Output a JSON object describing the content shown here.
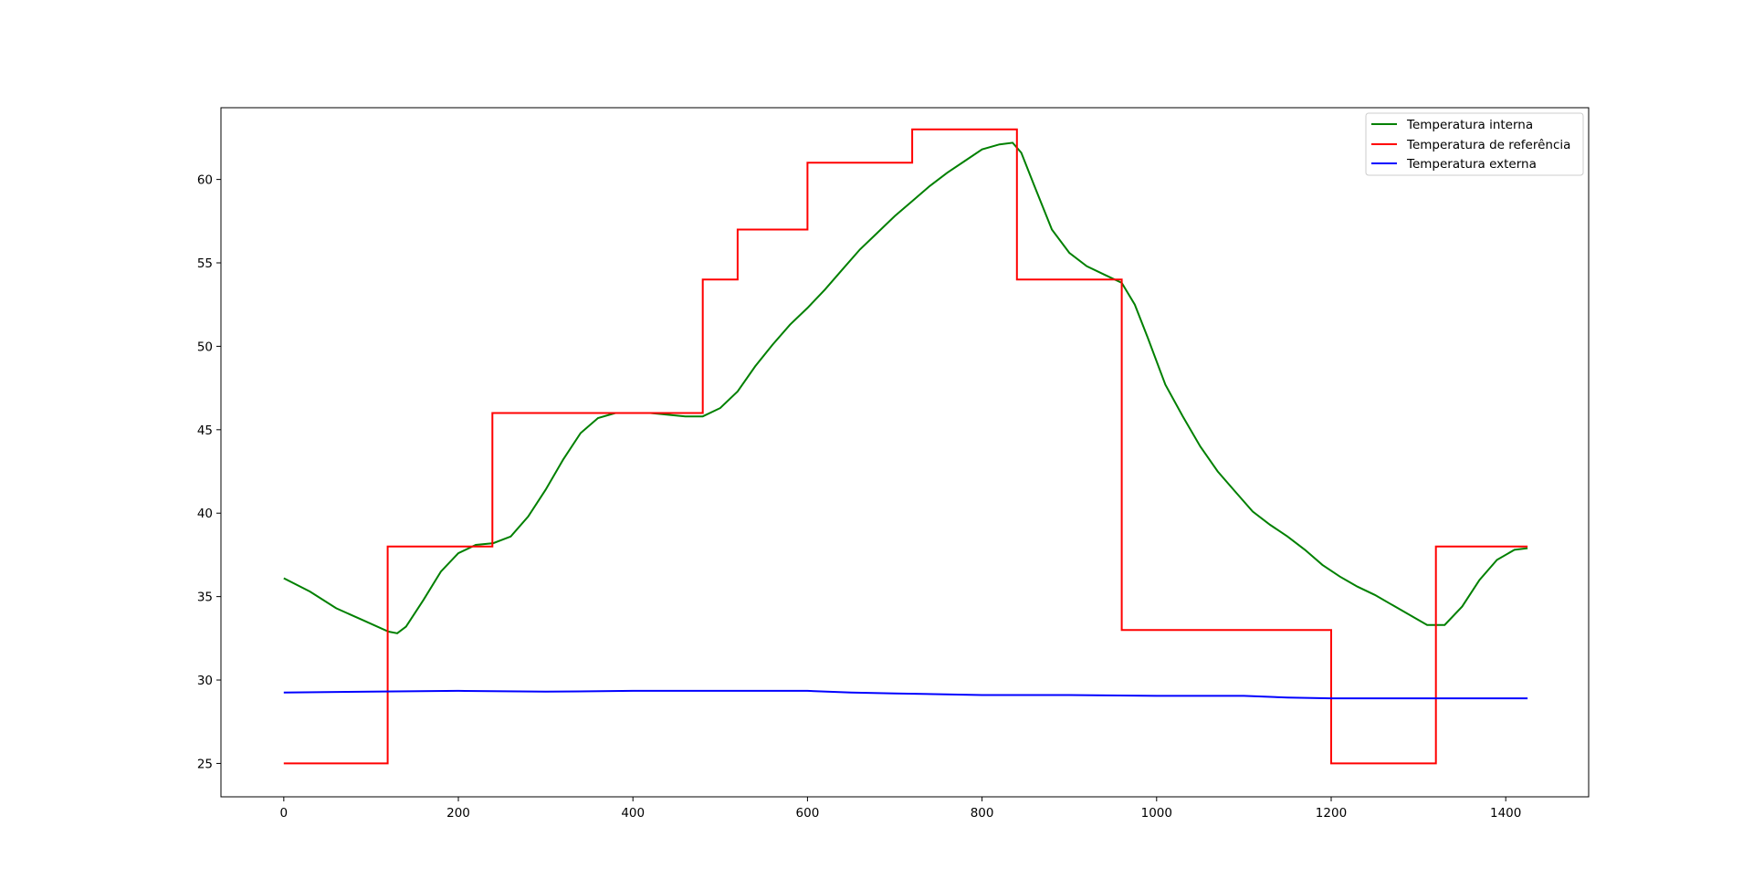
{
  "chart_data": {
    "type": "line",
    "title": "",
    "xlabel": "",
    "ylabel": "",
    "xlim": [
      -72,
      1495
    ],
    "ylim": [
      23.0,
      64.3
    ],
    "xticks": [
      0,
      200,
      400,
      600,
      800,
      1000,
      1200,
      1400
    ],
    "yticks": [
      25,
      30,
      35,
      40,
      45,
      50,
      55,
      60
    ],
    "xtick_labels": [
      "0",
      "200",
      "400",
      "600",
      "800",
      "1000",
      "1200",
      "1400"
    ],
    "ytick_labels": [
      "25",
      "30",
      "35",
      "40",
      "45",
      "50",
      "55",
      "60"
    ],
    "grid": false,
    "legend_position": "top-right",
    "series": [
      {
        "name": "Temperatura interna",
        "color": "#008000",
        "x": [
          0,
          30,
          60,
          90,
          120,
          130,
          140,
          160,
          180,
          200,
          220,
          240,
          260,
          280,
          300,
          320,
          340,
          360,
          380,
          400,
          420,
          440,
          460,
          480,
          500,
          520,
          540,
          560,
          580,
          600,
          620,
          640,
          660,
          680,
          700,
          720,
          740,
          760,
          780,
          800,
          820,
          835,
          845,
          860,
          880,
          900,
          920,
          940,
          960,
          975,
          990,
          1010,
          1030,
          1050,
          1070,
          1090,
          1110,
          1130,
          1150,
          1170,
          1190,
          1210,
          1230,
          1250,
          1270,
          1290,
          1310,
          1330,
          1350,
          1370,
          1390,
          1410,
          1425
        ],
        "y": [
          36.1,
          35.3,
          34.3,
          33.6,
          32.9,
          32.8,
          33.2,
          34.8,
          36.5,
          37.6,
          38.1,
          38.2,
          38.6,
          39.8,
          41.4,
          43.2,
          44.8,
          45.7,
          46.0,
          46.0,
          46.0,
          45.9,
          45.8,
          45.8,
          46.3,
          47.3,
          48.8,
          50.1,
          51.3,
          52.3,
          53.4,
          54.6,
          55.8,
          56.8,
          57.8,
          58.7,
          59.6,
          60.4,
          61.1,
          61.8,
          62.1,
          62.2,
          61.6,
          59.6,
          57.0,
          55.6,
          54.8,
          54.3,
          53.8,
          52.5,
          50.5,
          47.7,
          45.8,
          44.0,
          42.5,
          41.3,
          40.1,
          39.3,
          38.6,
          37.8,
          36.9,
          36.2,
          35.6,
          35.1,
          34.5,
          33.9,
          33.3,
          33.3,
          34.4,
          36.0,
          37.2,
          37.8,
          37.9
        ]
      },
      {
        "name": "Temperatura de referência",
        "color": "#ff0000",
        "x": [
          0,
          119,
          119,
          239,
          239,
          480,
          480,
          520,
          520,
          600,
          600,
          720,
          720,
          840,
          840,
          960,
          960,
          1200,
          1200,
          1320,
          1320,
          1425
        ],
        "y": [
          25,
          25,
          38,
          38,
          46,
          46,
          54,
          54,
          57,
          57,
          61,
          61,
          63,
          63,
          54,
          54,
          33,
          33,
          25,
          25,
          38,
          38
        ]
      },
      {
        "name": "Temperatura externa",
        "color": "#0000ff",
        "x": [
          0,
          100,
          200,
          300,
          400,
          500,
          600,
          650,
          700,
          800,
          900,
          1000,
          1100,
          1150,
          1200,
          1300,
          1425
        ],
        "y": [
          29.25,
          29.3,
          29.35,
          29.3,
          29.35,
          29.35,
          29.35,
          29.25,
          29.2,
          29.1,
          29.1,
          29.05,
          29.05,
          28.95,
          28.9,
          28.9,
          28.9
        ]
      }
    ]
  }
}
